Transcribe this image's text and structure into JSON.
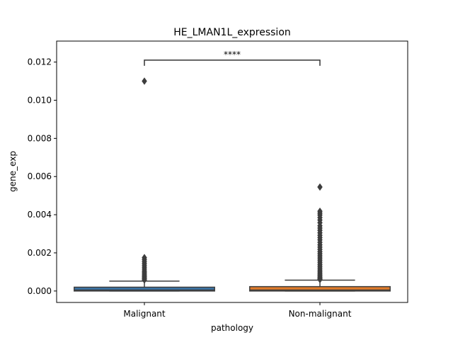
{
  "chart_data": {
    "type": "box",
    "title": "HE_LMAN1L_expression",
    "xlabel": "pathology",
    "ylabel": "gene_exp",
    "ylim": [
      -0.0006,
      0.0131
    ],
    "yticks": [
      0.0,
      0.002,
      0.004,
      0.006,
      0.008,
      0.01,
      0.012
    ],
    "ytick_labels": [
      "0.000",
      "0.002",
      "0.004",
      "0.006",
      "0.008",
      "0.010",
      "0.012"
    ],
    "categories": [
      "Malignant",
      "Non-malignant"
    ],
    "colors": [
      "#3a75a8",
      "#e07b2a"
    ],
    "boxes": [
      {
        "category": "Malignant",
        "whisker_low": 0.0,
        "q1": 0.0,
        "median": 5e-05,
        "q3": 0.0002,
        "whisker_high": 0.00052,
        "outliers": [
          0.011,
          0.00175,
          0.00165,
          0.00155,
          0.00145,
          0.00135,
          0.00125,
          0.00115,
          0.00105,
          0.00098,
          0.0009,
          0.00083,
          0.00076,
          0.0007,
          0.00064,
          0.00058
        ]
      },
      {
        "category": "Non-malignant",
        "whisker_low": 0.0,
        "q1": 0.0,
        "median": 5e-05,
        "q3": 0.00023,
        "whisker_high": 0.00057,
        "outliers": [
          0.00545,
          0.00418,
          0.00408,
          0.00398,
          0.00385,
          0.00372,
          0.00358,
          0.00342,
          0.0033,
          0.00318,
          0.00305,
          0.00292,
          0.0028,
          0.00268,
          0.00255,
          0.00242,
          0.0023,
          0.00218,
          0.00206,
          0.00195,
          0.00184,
          0.00173,
          0.00162,
          0.00151,
          0.0014,
          0.0013,
          0.0012,
          0.0011,
          0.00101,
          0.00093,
          0.00085,
          0.00078,
          0.00071,
          0.00065,
          0.0006
        ]
      }
    ],
    "annotation": {
      "text": "****",
      "between": [
        "Malignant",
        "Non-malignant"
      ],
      "y": 0.0121
    }
  }
}
